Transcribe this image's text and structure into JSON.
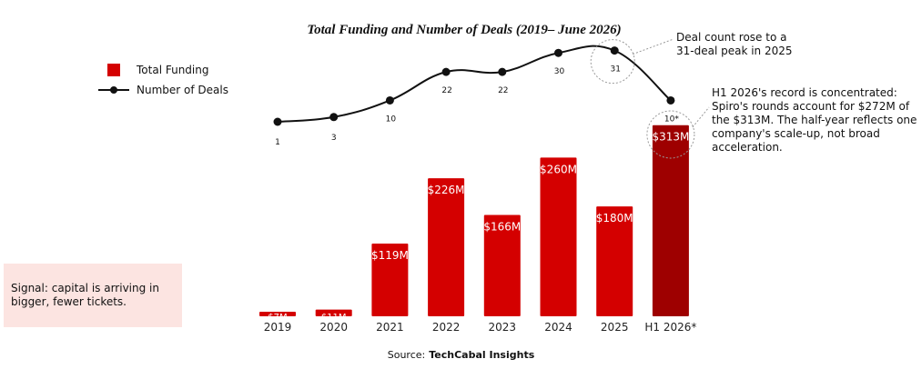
{
  "chart_data": {
    "type": "bar",
    "title": "Total Funding and Number of Deals (2019– June  2026)",
    "categories": [
      "2019",
      "2020",
      "2021",
      "2022",
      "2023",
      "2024",
      "2025",
      "H1 2026*"
    ],
    "series": [
      {
        "name": "Total Funding",
        "type": "bar",
        "values": [
          7,
          11,
          119,
          226,
          166,
          260,
          180,
          313
        ],
        "labels": [
          "$7M",
          "$11M",
          "$119M",
          "$226M",
          "$166M",
          "$260M",
          "$180M",
          "$313M"
        ],
        "color": "#d40000",
        "highlight_color": "#9e0000"
      },
      {
        "name": "Number of Deals",
        "type": "line",
        "values": [
          1,
          3,
          10,
          22,
          22,
          30,
          31,
          10
        ],
        "labels": [
          "1",
          "3",
          "10",
          "22",
          "22",
          "30",
          "31",
          "10*"
        ],
        "color": "#111111"
      }
    ],
    "ylim": [
      0,
      320
    ],
    "deals_ylim": [
      0,
      33
    ],
    "grid": false,
    "legend": "top-left"
  },
  "legend": {
    "funding_label": "Total Funding",
    "deals_label": "Number of Deals"
  },
  "annotations": {
    "peak": "Deal count rose to a\n31-deal peak in 2025",
    "record": "H1 2026's record is concentrated:\nSpiro's rounds account for $272M of\nthe $313M. The half-year reflects one\ncompany's scale-up, not broad\nacceleration.",
    "signal": "Signal: capital is arriving in\nbigger, fewer tickets."
  },
  "source": {
    "label": "Source:",
    "name": "TechCabal Insights"
  }
}
